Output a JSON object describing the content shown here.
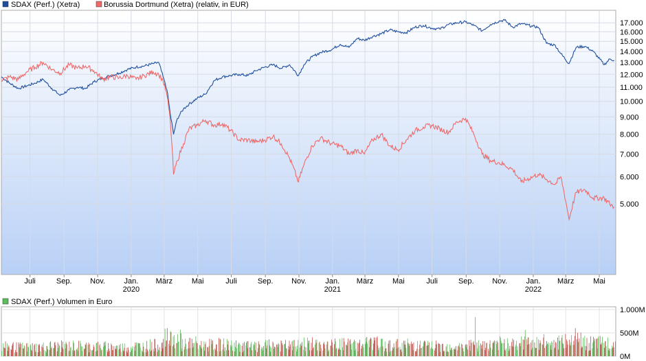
{
  "chart_data": [
    {
      "type": "line",
      "title": "",
      "xlabel": "",
      "ylabel": "",
      "ylim": [
        3100,
        18500
      ],
      "y_scale": "log",
      "y_ticks": [
        5000,
        6000,
        7000,
        8000,
        9000,
        10000,
        11000,
        12000,
        13000,
        14000,
        15000,
        16000,
        17000
      ],
      "y_tick_labels": [
        "5.000",
        "6.000",
        "7.000",
        "8.000",
        "9.000",
        "10.000",
        "11.000",
        "12.000",
        "13.000",
        "14.000",
        "15.000",
        "16.000",
        "17.000"
      ],
      "x_range": [
        "2019-05-10",
        "2022-05-31"
      ],
      "x_ticks": [
        {
          "date": "2019-07-01",
          "label": "Juli",
          "year": ""
        },
        {
          "date": "2019-09-01",
          "label": "Sep.",
          "year": ""
        },
        {
          "date": "2019-11-01",
          "label": "Nov.",
          "year": ""
        },
        {
          "date": "2020-01-01",
          "label": "Jan.",
          "year": "2020"
        },
        {
          "date": "2020-03-01",
          "label": "März",
          "year": ""
        },
        {
          "date": "2020-05-01",
          "label": "Mai",
          "year": ""
        },
        {
          "date": "2020-07-01",
          "label": "Juli",
          "year": ""
        },
        {
          "date": "2020-09-01",
          "label": "Sep.",
          "year": ""
        },
        {
          "date": "2020-11-01",
          "label": "Nov.",
          "year": ""
        },
        {
          "date": "2021-01-01",
          "label": "Jan.",
          "year": "2021"
        },
        {
          "date": "2021-03-01",
          "label": "März",
          "year": ""
        },
        {
          "date": "2021-05-01",
          "label": "Mai",
          "year": ""
        },
        {
          "date": "2021-07-01",
          "label": "Juli",
          "year": ""
        },
        {
          "date": "2021-09-01",
          "label": "Sep.",
          "year": ""
        },
        {
          "date": "2021-11-01",
          "label": "Nov.",
          "year": ""
        },
        {
          "date": "2022-01-01",
          "label": "Jan.",
          "year": "2022"
        },
        {
          "date": "2022-03-01",
          "label": "März",
          "year": ""
        },
        {
          "date": "2022-05-01",
          "label": "Mai",
          "year": ""
        }
      ],
      "grid": true,
      "legend_position": "top-left",
      "series": [
        {
          "name": "SDAX (Perf.) (Xetra)",
          "color": "#1f4e9e",
          "points": [
            [
              "2019-05-10",
              11800
            ],
            [
              "2019-05-25",
              11300
            ],
            [
              "2019-06-10",
              10900
            ],
            [
              "2019-06-25",
              11100
            ],
            [
              "2019-07-10",
              11300
            ],
            [
              "2019-07-25",
              11600
            ],
            [
              "2019-08-10",
              10900
            ],
            [
              "2019-08-25",
              10400
            ],
            [
              "2019-09-10",
              10800
            ],
            [
              "2019-09-25",
              11000
            ],
            [
              "2019-10-10",
              10900
            ],
            [
              "2019-10-25",
              11400
            ],
            [
              "2019-11-10",
              11700
            ],
            [
              "2019-11-25",
              11900
            ],
            [
              "2019-12-10",
              12100
            ],
            [
              "2019-12-25",
              12400
            ],
            [
              "2020-01-10",
              12600
            ],
            [
              "2020-01-25",
              12700
            ],
            [
              "2020-02-10",
              12900
            ],
            [
              "2020-02-20",
              13000
            ],
            [
              "2020-02-28",
              11800
            ],
            [
              "2020-03-06",
              10800
            ],
            [
              "2020-03-12",
              9200
            ],
            [
              "2020-03-18",
              8000
            ],
            [
              "2020-03-25",
              8900
            ],
            [
              "2020-04-05",
              9500
            ],
            [
              "2020-04-15",
              9800
            ],
            [
              "2020-04-30",
              10200
            ],
            [
              "2020-05-15",
              10500
            ],
            [
              "2020-05-31",
              11500
            ],
            [
              "2020-06-15",
              11800
            ],
            [
              "2020-06-30",
              11900
            ],
            [
              "2020-07-15",
              12000
            ],
            [
              "2020-07-31",
              11900
            ],
            [
              "2020-08-15",
              12300
            ],
            [
              "2020-08-31",
              12600
            ],
            [
              "2020-09-15",
              12800
            ],
            [
              "2020-09-30",
              12500
            ],
            [
              "2020-10-15",
              12800
            ],
            [
              "2020-10-31",
              11900
            ],
            [
              "2020-11-10",
              12800
            ],
            [
              "2020-11-25",
              13500
            ],
            [
              "2020-12-10",
              13900
            ],
            [
              "2020-12-31",
              14200
            ],
            [
              "2021-01-15",
              14700
            ],
            [
              "2021-01-31",
              14400
            ],
            [
              "2021-02-15",
              15300
            ],
            [
              "2021-02-28",
              15100
            ],
            [
              "2021-03-15",
              15500
            ],
            [
              "2021-03-31",
              15800
            ],
            [
              "2021-04-15",
              16200
            ],
            [
              "2021-04-30",
              16000
            ],
            [
              "2021-05-15",
              15900
            ],
            [
              "2021-05-31",
              16500
            ],
            [
              "2021-06-15",
              16700
            ],
            [
              "2021-06-30",
              16400
            ],
            [
              "2021-07-15",
              16300
            ],
            [
              "2021-07-31",
              16800
            ],
            [
              "2021-08-15",
              17000
            ],
            [
              "2021-08-31",
              17100
            ],
            [
              "2021-09-15",
              16700
            ],
            [
              "2021-09-30",
              16100
            ],
            [
              "2021-10-15",
              16800
            ],
            [
              "2021-10-31",
              17200
            ],
            [
              "2021-11-10",
              17300
            ],
            [
              "2021-11-25",
              16500
            ],
            [
              "2021-12-10",
              16900
            ],
            [
              "2021-12-31",
              16600
            ],
            [
              "2022-01-10",
              16500
            ],
            [
              "2022-01-25",
              14800
            ],
            [
              "2022-02-10",
              14600
            ],
            [
              "2022-02-20",
              13800
            ],
            [
              "2022-03-07",
              12900
            ],
            [
              "2022-03-20",
              14400
            ],
            [
              "2022-04-05",
              14500
            ],
            [
              "2022-04-20",
              14000
            ],
            [
              "2022-05-10",
              12800
            ],
            [
              "2022-05-20",
              13300
            ],
            [
              "2022-05-28",
              13200
            ]
          ]
        },
        {
          "name": "Borussia Dortmund (Xetra) (relativ, in EUR)",
          "color": "#ee6a6a",
          "points": [
            [
              "2019-05-10",
              11500
            ],
            [
              "2019-05-25",
              11800
            ],
            [
              "2019-06-10",
              11600
            ],
            [
              "2019-06-25",
              12200
            ],
            [
              "2019-07-10",
              12600
            ],
            [
              "2019-07-25",
              13000
            ],
            [
              "2019-08-10",
              12400
            ],
            [
              "2019-08-25",
              12100
            ],
            [
              "2019-09-10",
              12800
            ],
            [
              "2019-09-25",
              12500
            ],
            [
              "2019-10-10",
              12700
            ],
            [
              "2019-10-25",
              12300
            ],
            [
              "2019-11-10",
              11600
            ],
            [
              "2019-11-25",
              11800
            ],
            [
              "2019-12-10",
              11700
            ],
            [
              "2019-12-25",
              11900
            ],
            [
              "2020-01-10",
              11600
            ],
            [
              "2020-01-25",
              11900
            ],
            [
              "2020-02-10",
              12200
            ],
            [
              "2020-02-20",
              12000
            ],
            [
              "2020-02-28",
              11500
            ],
            [
              "2020-03-06",
              10400
            ],
            [
              "2020-03-12",
              8800
            ],
            [
              "2020-03-18",
              6100
            ],
            [
              "2020-03-25",
              6700
            ],
            [
              "2020-04-05",
              7500
            ],
            [
              "2020-04-15",
              8300
            ],
            [
              "2020-04-30",
              8500
            ],
            [
              "2020-05-15",
              8800
            ],
            [
              "2020-05-31",
              8500
            ],
            [
              "2020-06-15",
              8600
            ],
            [
              "2020-06-30",
              8200
            ],
            [
              "2020-07-15",
              7700
            ],
            [
              "2020-07-31",
              7700
            ],
            [
              "2020-08-15",
              7600
            ],
            [
              "2020-08-31",
              7700
            ],
            [
              "2020-09-15",
              7900
            ],
            [
              "2020-09-30",
              7500
            ],
            [
              "2020-10-15",
              6800
            ],
            [
              "2020-10-31",
              5800
            ],
            [
              "2020-11-10",
              6500
            ],
            [
              "2020-11-25",
              7400
            ],
            [
              "2020-12-10",
              7800
            ],
            [
              "2020-12-31",
              7500
            ],
            [
              "2021-01-15",
              7400
            ],
            [
              "2021-01-31",
              7000
            ],
            [
              "2021-02-15",
              7200
            ],
            [
              "2021-02-28",
              7000
            ],
            [
              "2021-03-15",
              7700
            ],
            [
              "2021-03-31",
              8000
            ],
            [
              "2021-04-15",
              7400
            ],
            [
              "2021-04-30",
              7200
            ],
            [
              "2021-05-15",
              7700
            ],
            [
              "2021-05-31",
              8200
            ],
            [
              "2021-06-15",
              8400
            ],
            [
              "2021-06-30",
              8500
            ],
            [
              "2021-07-15",
              8300
            ],
            [
              "2021-07-31",
              8100
            ],
            [
              "2021-08-15",
              8700
            ],
            [
              "2021-08-31",
              8900
            ],
            [
              "2021-09-15",
              8000
            ],
            [
              "2021-09-30",
              7000
            ],
            [
              "2021-10-15",
              6700
            ],
            [
              "2021-10-31",
              6600
            ],
            [
              "2021-11-10",
              6500
            ],
            [
              "2021-11-25",
              6300
            ],
            [
              "2021-12-10",
              5800
            ],
            [
              "2021-12-31",
              6000
            ],
            [
              "2022-01-10",
              6100
            ],
            [
              "2022-01-25",
              5900
            ],
            [
              "2022-02-10",
              5700
            ],
            [
              "2022-02-20",
              6000
            ],
            [
              "2022-03-07",
              4500
            ],
            [
              "2022-03-20",
              5400
            ],
            [
              "2022-04-05",
              5500
            ],
            [
              "2022-04-20",
              5200
            ],
            [
              "2022-05-10",
              5200
            ],
            [
              "2022-05-20",
              5000
            ],
            [
              "2022-05-28",
              4900
            ]
          ]
        }
      ]
    },
    {
      "type": "bar",
      "title": "",
      "xlabel": "",
      "ylabel": "",
      "ylim": [
        0,
        1000
      ],
      "unit": "M",
      "y_ticks": [
        0,
        500,
        1000
      ],
      "y_tick_labels": [
        "0M",
        "500M",
        "1.000M"
      ],
      "grid": true,
      "legend_position": "top-left",
      "x_range": [
        "2019-05-10",
        "2022-05-31"
      ],
      "series": [
        {
          "name": "SDAX (Perf.) Volumen in Euro",
          "color": "#5ebd5e",
          "down_color": "#c0504d",
          "monthly_avg_volume": [
            [
              "2019-05",
              220
            ],
            [
              "2019-06",
              210
            ],
            [
              "2019-07",
              215
            ],
            [
              "2019-08",
              235
            ],
            [
              "2019-09",
              240
            ],
            [
              "2019-10",
              230
            ],
            [
              "2019-11",
              225
            ],
            [
              "2019-12",
              210
            ],
            [
              "2020-01",
              235
            ],
            [
              "2020-02",
              260
            ],
            [
              "2020-03",
              420
            ],
            [
              "2020-04",
              300
            ],
            [
              "2020-05",
              260
            ],
            [
              "2020-06",
              270
            ],
            [
              "2020-07",
              240
            ],
            [
              "2020-08",
              220
            ],
            [
              "2020-09",
              250
            ],
            [
              "2020-10",
              245
            ],
            [
              "2020-11",
              290
            ],
            [
              "2020-12",
              250
            ],
            [
              "2021-01",
              280
            ],
            [
              "2021-02",
              270
            ],
            [
              "2021-03",
              300
            ],
            [
              "2021-04",
              260
            ],
            [
              "2021-05",
              270
            ],
            [
              "2021-06",
              250
            ],
            [
              "2021-07",
              230
            ],
            [
              "2021-08",
              225
            ],
            [
              "2021-09",
              260
            ],
            [
              "2021-10",
              250
            ],
            [
              "2021-11",
              300
            ],
            [
              "2021-12",
              300
            ],
            [
              "2022-01",
              330
            ],
            [
              "2022-02",
              330
            ],
            [
              "2022-03",
              360
            ],
            [
              "2022-04",
              300
            ],
            [
              "2022-05",
              300
            ]
          ],
          "spikes": [
            [
              "2020-03-12",
              540
            ],
            [
              "2021-09-17",
              840
            ],
            [
              "2021-12-17",
              560
            ],
            [
              "2022-03-18",
              600
            ]
          ]
        }
      ]
    }
  ]
}
